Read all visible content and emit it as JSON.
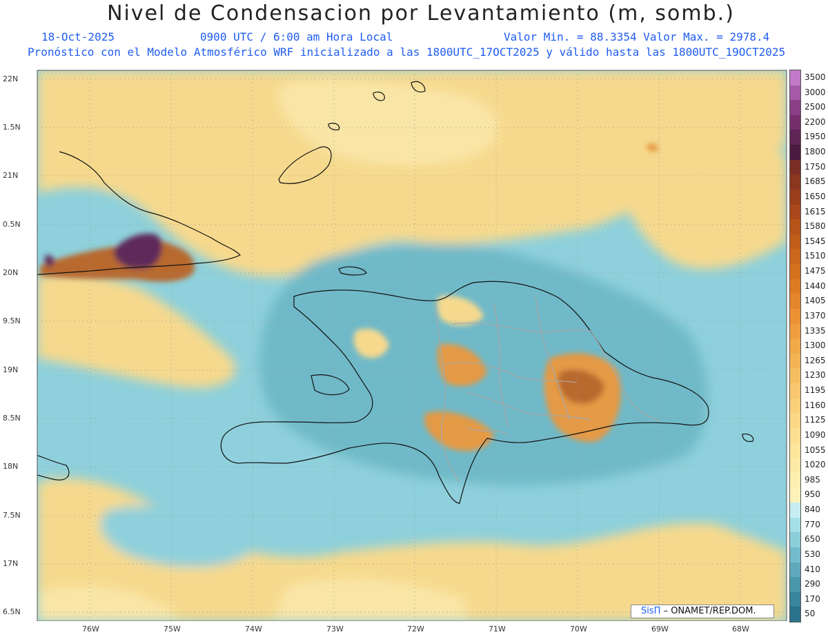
{
  "header": {
    "title": "Nivel de Condensacion por Levantamiento (m, somb.)",
    "date": "18-Oct-2025",
    "time": "0900 UTC / 6:00 am Hora Local",
    "minmax": "Valor Min. = 88.3354  Valor Max. = 2978.4",
    "forecast": "Pronóstico con el Modelo Atmosférico WRF inicializado a las 1800UTC_17OCT2025 y válido hasta las  1800UTC_19OCT2025"
  },
  "axes": {
    "lat_labels": [
      "22N",
      "1.5N",
      "21N",
      "0.5N",
      "20N",
      "9.5N",
      "19N",
      "8.5N",
      "18N",
      "7.5N",
      "17N",
      "6.5N"
    ],
    "lon_labels": [
      "76W",
      "75W",
      "74W",
      "73W",
      "72W",
      "71W",
      "70W",
      "69W",
      "68W"
    ]
  },
  "colorbar": {
    "labels": [
      "3500",
      "3000",
      "2500",
      "2200",
      "1950",
      "1800",
      "1750",
      "1685",
      "1650",
      "1615",
      "1580",
      "1545",
      "1510",
      "1475",
      "1440",
      "1405",
      "1370",
      "1335",
      "1300",
      "1265",
      "1230",
      "1195",
      "1160",
      "1125",
      "1090",
      "1055",
      "1020",
      "985",
      "950",
      "840",
      "770",
      "650",
      "530",
      "410",
      "290",
      "170",
      "50"
    ],
    "colors": [
      "#c07ac8",
      "#a55aa8",
      "#8a3f86",
      "#75306c",
      "#5f2555",
      "#4b1b40",
      "#7a2f26",
      "#8a3720",
      "#9a3f1c",
      "#a9481a",
      "#b55319",
      "#c05d1a",
      "#ca671c",
      "#d4711f",
      "#dc7b24",
      "#e4862b",
      "#ea9234",
      "#ee9e3f",
      "#f1a94a",
      "#f4b456",
      "#f6be62",
      "#f8c76e",
      "#fad07a",
      "#fbd885",
      "#fcdf91",
      "#fde59c",
      "#fdeaa6",
      "#fdefb0",
      "#fdf3b9",
      "#c7edf2",
      "#a6dfe7",
      "#8ccfd9",
      "#74bccb",
      "#5ea9bb",
      "#4a97ab",
      "#39859b",
      "#2a728a"
    ]
  },
  "credit": {
    "brand": "SisΠ",
    "org": "– ONAMET/REP.DOM."
  },
  "map_colors": {
    "sea": "#8ed0db",
    "sea_deep": "#6fb9c8",
    "dry": "#f6d98d",
    "dry_light": "#f9e6a7",
    "high_orange": "#e59a45",
    "high_brown": "#b8692d",
    "peak_purple": "#5e2a5a"
  }
}
